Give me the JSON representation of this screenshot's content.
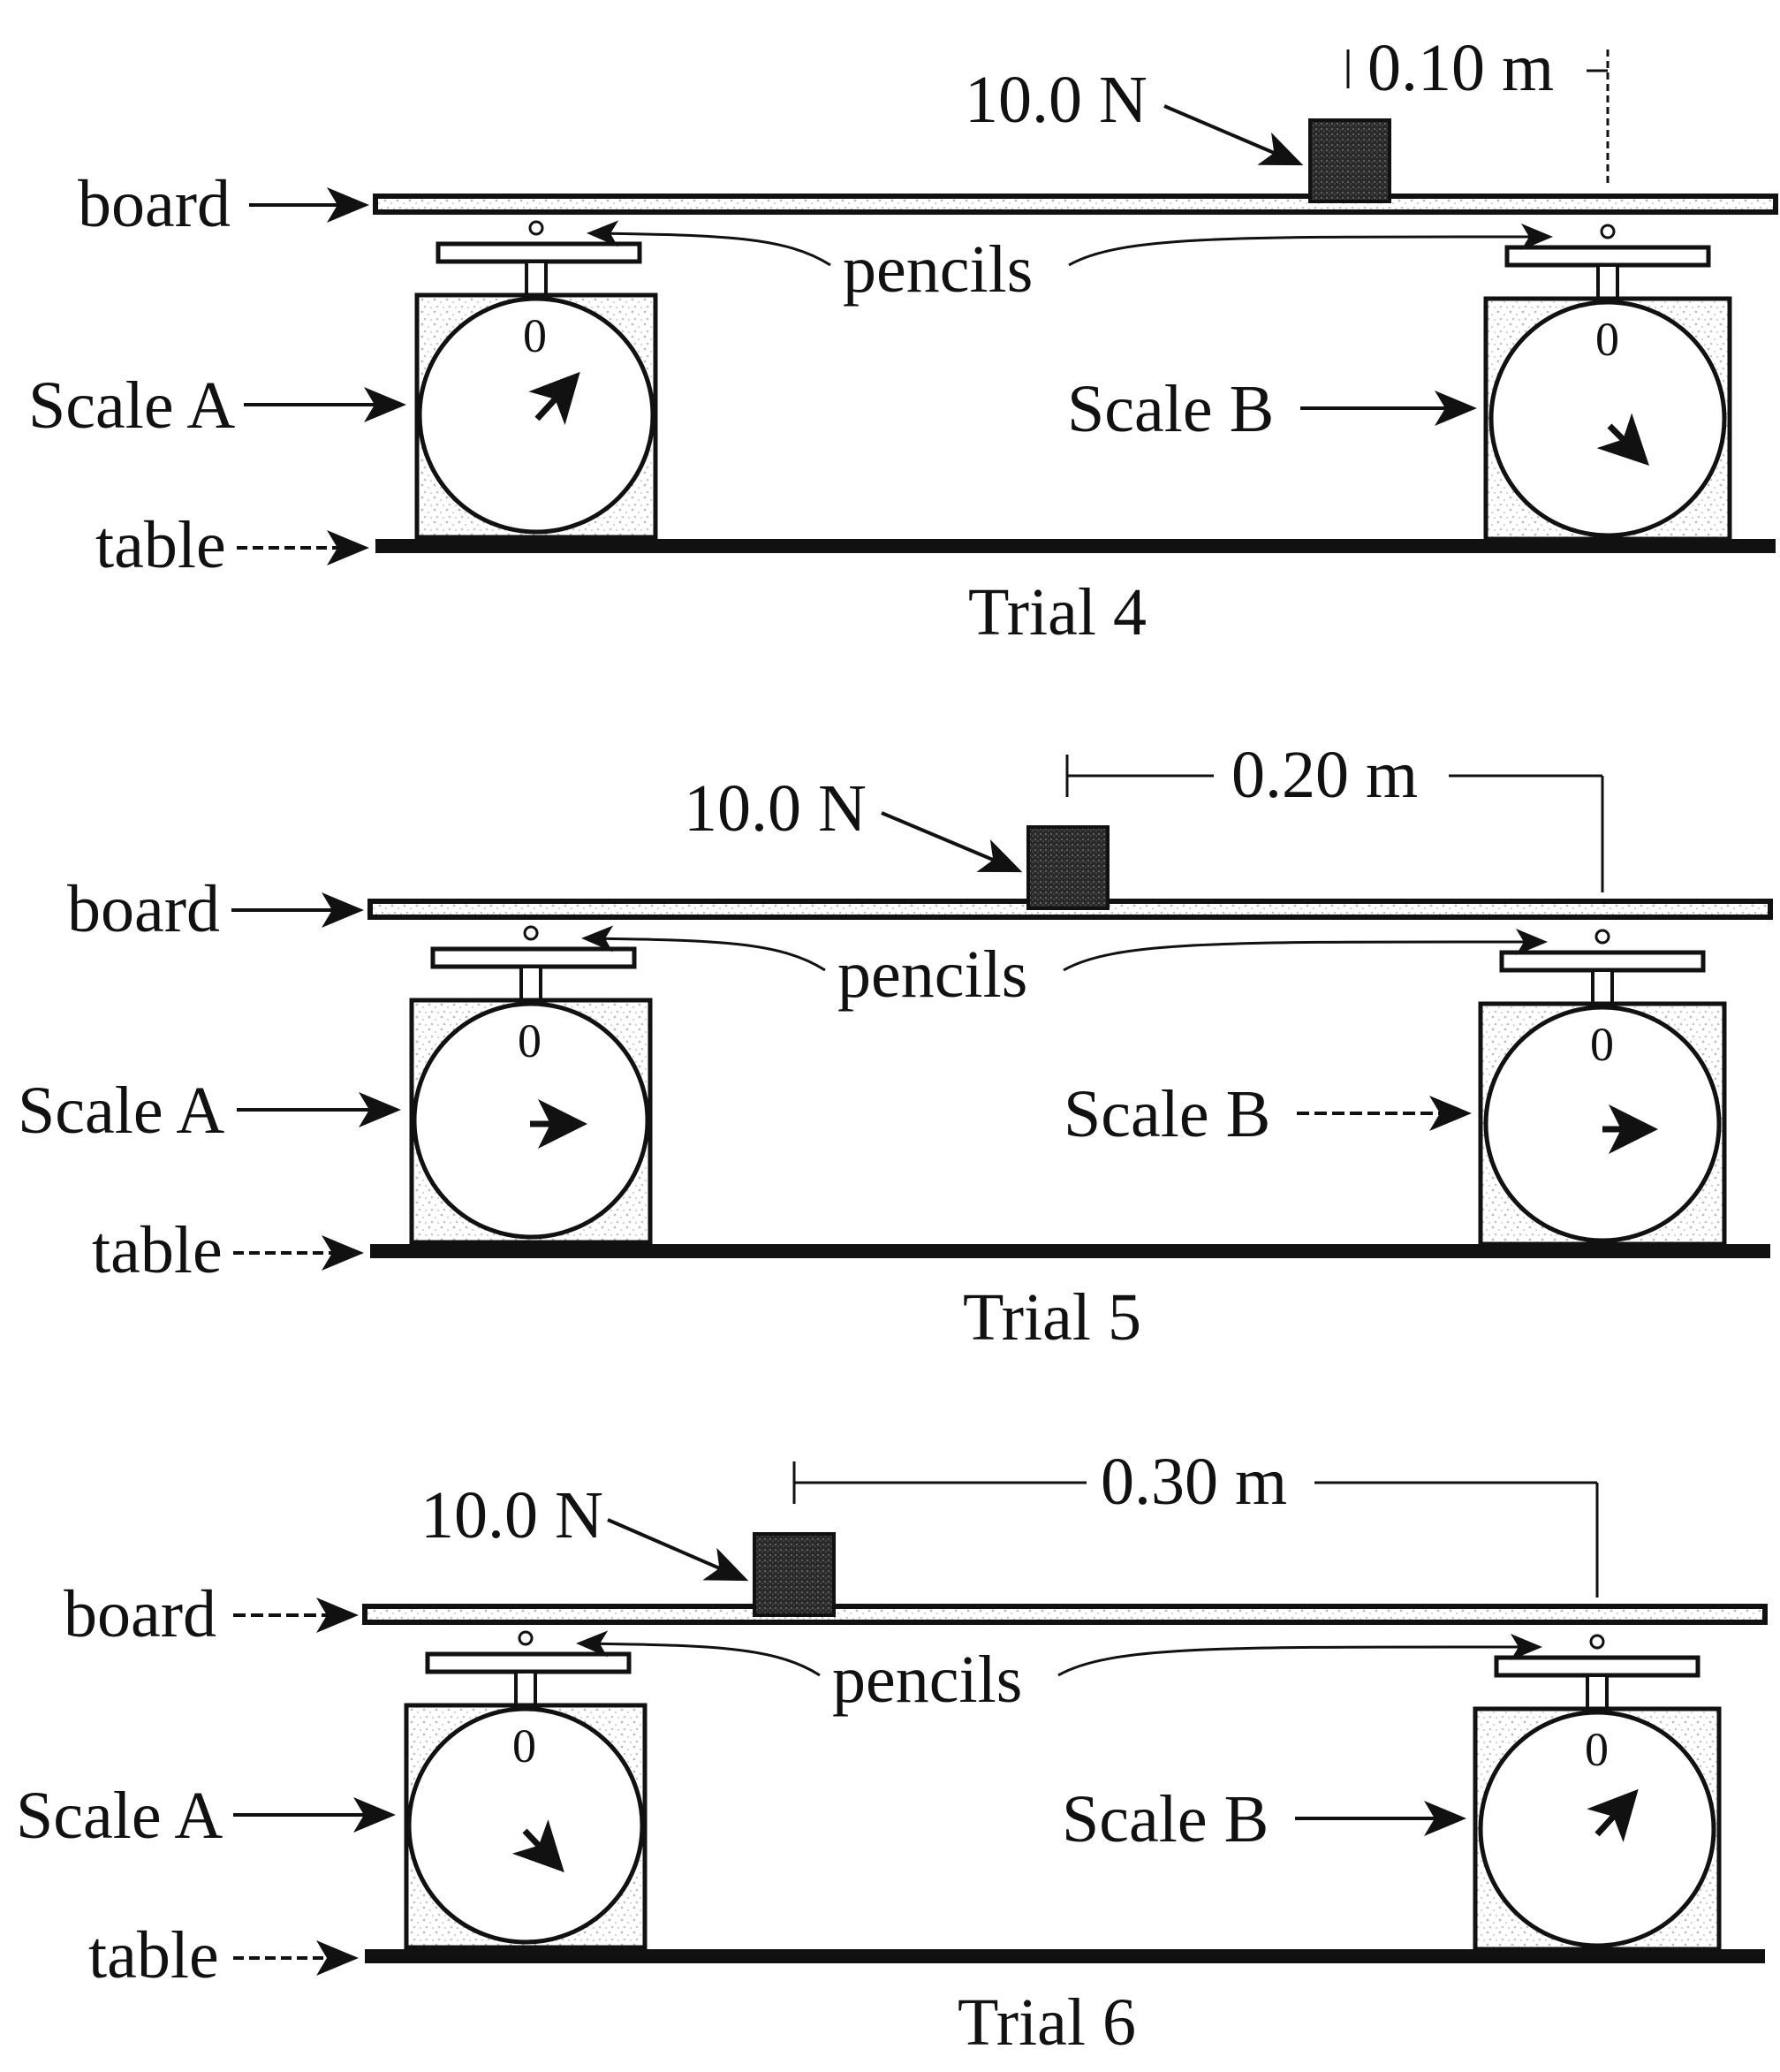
{
  "colors": {
    "ink": "#111111",
    "speckle": "#d2d2d2",
    "block": "#3a3a3a"
  },
  "trials": [
    {
      "title": "Trial 4",
      "weight_label": "10.0 N",
      "distance_label": "0.10 m",
      "labels": {
        "board": "board",
        "pencils": "pencils",
        "scale_a": "Scale A",
        "scale_b": "Scale B",
        "table": "table",
        "zero": "0"
      },
      "scale_a_needle": "up-right",
      "scale_b_needle": "down-right"
    },
    {
      "title": "Trial 5",
      "weight_label": "10.0 N",
      "distance_label": "0.20 m",
      "labels": {
        "board": "board",
        "pencils": "pencils",
        "scale_a": "Scale A",
        "scale_b": "Scale B",
        "table": "table",
        "zero": "0"
      },
      "scale_a_needle": "right",
      "scale_b_needle": "right"
    },
    {
      "title": "Trial 6",
      "weight_label": "10.0 N",
      "distance_label": "0.30 m",
      "labels": {
        "board": "board",
        "pencils": "pencils",
        "scale_a": "Scale A",
        "scale_b": "Scale B",
        "table": "table",
        "zero": "0"
      },
      "scale_a_needle": "down-right",
      "scale_b_needle": "up-right"
    }
  ]
}
